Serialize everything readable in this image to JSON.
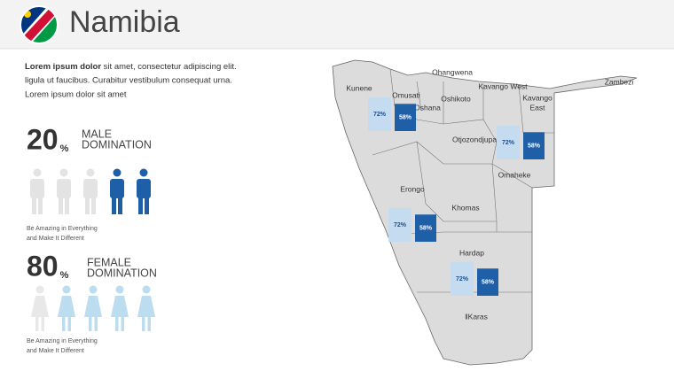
{
  "header": {
    "title": "Namibia"
  },
  "intro": {
    "bold": "Lorem ipsum dolor",
    "lines": [
      " sit amet, consectetur adipiscing elit.",
      "ligula ut faucibus. Curabitur vestibulum consequat urna.",
      "Lorem ipsum dolor sit amet"
    ]
  },
  "stats": [
    {
      "value": 20,
      "unit": "%",
      "label": [
        "MALE",
        "DOMINATION"
      ],
      "caption": [
        "Be Amazing in Everything",
        "and Make It Different"
      ]
    },
    {
      "value": 80,
      "unit": "%",
      "label": [
        "FEMALE",
        "DOMINATION"
      ],
      "caption": [
        "Be Amazing in Everything",
        "and Make It Different"
      ]
    }
  ],
  "regions": [
    {
      "lines": [
        "Ohangwena"
      ]
    },
    {
      "lines": [
        "Kunene"
      ]
    },
    {
      "lines": [
        "Omusati"
      ]
    },
    {
      "lines": [
        "Oshana"
      ]
    },
    {
      "lines": [
        "Oshikoto"
      ]
    },
    {
      "lines": [
        "Kavango West"
      ]
    },
    {
      "lines": [
        "Kavango",
        "East"
      ]
    },
    {
      "lines": [
        "Zambezi"
      ]
    },
    {
      "lines": [
        "Otjozondjupa"
      ]
    },
    {
      "lines": [
        "Omaheke"
      ]
    },
    {
      "lines": [
        "Erongo"
      ]
    },
    {
      "lines": [
        "Khomas"
      ]
    },
    {
      "lines": [
        "Hardap"
      ]
    },
    {
      "lines": [
        "ǁKaras"
      ]
    }
  ],
  "callouts": [
    {
      "values": [
        72,
        58
      ],
      "value_labels": [
        "72%",
        "58%"
      ]
    },
    {
      "values": [
        72,
        58
      ],
      "value_labels": [
        "72%",
        "58%"
      ]
    },
    {
      "values": [
        72,
        58
      ],
      "value_labels": [
        "72%",
        "58%"
      ]
    },
    {
      "values": [
        72,
        58
      ],
      "value_labels": [
        "72%",
        "58%"
      ]
    }
  ]
}
